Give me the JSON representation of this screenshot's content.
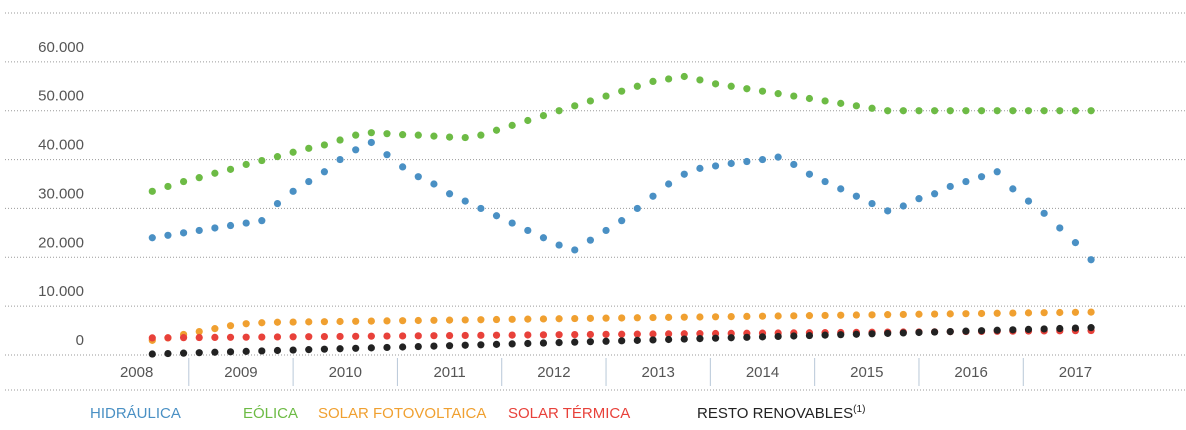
{
  "chart_data": {
    "type": "scatter",
    "x": [
      2008.15,
      2008.3,
      2008.45,
      2008.6,
      2008.75,
      2008.9,
      2009.05,
      2009.2,
      2009.35,
      2009.5,
      2009.65,
      2009.8,
      2009.95,
      2010.1,
      2010.25,
      2010.4,
      2010.55,
      2010.7,
      2010.85,
      2011,
      2011.15,
      2011.3,
      2011.45,
      2011.6,
      2011.75,
      2011.9,
      2012.05,
      2012.2,
      2012.35,
      2012.5,
      2012.65,
      2012.8,
      2012.95,
      2013.1,
      2013.25,
      2013.4,
      2013.55,
      2013.7,
      2013.85,
      2014,
      2014.15,
      2014.3,
      2014.45,
      2014.6,
      2014.75,
      2014.9,
      2015.05,
      2015.2,
      2015.35,
      2015.5,
      2015.65,
      2015.8,
      2015.95,
      2016.1,
      2016.25,
      2016.4,
      2016.55,
      2016.7,
      2016.85,
      2017,
      2017.15
    ],
    "series": [
      {
        "name": "HIDRÁULICA",
        "color": "#4a90c4",
        "values": [
          24000,
          24500,
          25000,
          25500,
          26000,
          26500,
          27000,
          27500,
          31000,
          33500,
          35500,
          37500,
          40000,
          42000,
          43500,
          41000,
          38500,
          36500,
          35000,
          33000,
          31500,
          30000,
          28500,
          27000,
          25500,
          24000,
          22500,
          21500,
          23500,
          25500,
          27500,
          30000,
          32500,
          35000,
          37000,
          38200,
          38700,
          39200,
          39600,
          40000,
          40500,
          39000,
          37000,
          35500,
          34000,
          32500,
          31000,
          29500,
          30500,
          32000,
          33000,
          34500,
          35500,
          36500,
          37500,
          34000,
          31500,
          29000,
          26000,
          23000,
          19500
        ]
      },
      {
        "name": "EÓLICA",
        "color": "#6dbb45",
        "values": [
          33500,
          34500,
          35500,
          36300,
          37200,
          38000,
          39000,
          39800,
          40600,
          41500,
          42300,
          43000,
          44000,
          45000,
          45500,
          45300,
          45100,
          45000,
          44800,
          44600,
          44500,
          45000,
          46000,
          47000,
          48000,
          49000,
          50000,
          51000,
          52000,
          53000,
          54000,
          55000,
          56000,
          56500,
          57000,
          56300,
          55500,
          55000,
          54500,
          54000,
          53500,
          53000,
          52500,
          52000,
          51500,
          51000,
          50500,
          50000,
          50000,
          50000,
          50000,
          50000,
          50000,
          50000,
          50000,
          50000,
          50000,
          50000,
          50000,
          50000,
          50000
        ]
      },
      {
        "name": "SOLAR FOTOVOLTAICA",
        "color": "#f0a030",
        "values": [
          3000,
          3500,
          4200,
          4800,
          5400,
          6000,
          6400,
          6600,
          6700,
          6740,
          6780,
          6820,
          6860,
          6900,
          6940,
          6980,
          7020,
          7060,
          7100,
          7140,
          7180,
          7220,
          7260,
          7300,
          7340,
          7380,
          7420,
          7460,
          7500,
          7540,
          7580,
          7620,
          7660,
          7700,
          7740,
          7780,
          7820,
          7860,
          7900,
          7940,
          7980,
          8020,
          8060,
          8100,
          8140,
          8180,
          8220,
          8260,
          8300,
          8340,
          8380,
          8420,
          8460,
          8500,
          8540,
          8580,
          8620,
          8660,
          8700,
          8740,
          8780
        ]
      },
      {
        "name": "SOLAR TÉRMICA",
        "color": "#e8413a",
        "values": [
          3500,
          3525,
          3550,
          3575,
          3600,
          3625,
          3650,
          3675,
          3700,
          3725,
          3750,
          3775,
          3800,
          3825,
          3850,
          3875,
          3900,
          3925,
          3950,
          3975,
          4000,
          4025,
          4050,
          4075,
          4100,
          4125,
          4150,
          4175,
          4200,
          4225,
          4250,
          4275,
          4300,
          4325,
          4350,
          4375,
          4400,
          4425,
          4450,
          4475,
          4500,
          4525,
          4550,
          4575,
          4600,
          4625,
          4650,
          4675,
          4700,
          4725,
          4750,
          4775,
          4800,
          4825,
          4850,
          4875,
          4900,
          4925,
          4950,
          4975,
          5000
        ]
      },
      {
        "name": "RESTO RENOVABLES",
        "color": "#222222",
        "values": [
          200,
          290,
          380,
          470,
          560,
          650,
          740,
          830,
          920,
          1010,
          1100,
          1190,
          1280,
          1370,
          1460,
          1550,
          1640,
          1730,
          1820,
          1910,
          2000,
          2090,
          2180,
          2270,
          2360,
          2450,
          2540,
          2630,
          2720,
          2810,
          2900,
          2990,
          3080,
          3170,
          3260,
          3350,
          3440,
          3530,
          3620,
          3710,
          3800,
          3890,
          3980,
          4070,
          4160,
          4250,
          4340,
          4430,
          4520,
          4610,
          4700,
          4790,
          4880,
          4970,
          5060,
          5150,
          5240,
          5330,
          5420,
          5510,
          5600
        ]
      }
    ],
    "legend_note": "(1)",
    "xlim": [
      2006.69,
      2018.06
    ],
    "xticks": [
      2008,
      2009,
      2010,
      2011,
      2012,
      2013,
      2014,
      2015,
      2016,
      2017
    ],
    "ylim": [
      0,
      70000
    ],
    "yticks": [
      0,
      {
        "value": 10000,
        "label": "10.000"
      },
      {
        "value": 20000,
        "label": "20.000"
      },
      {
        "value": 30000,
        "label": "30.000"
      },
      {
        "value": 40000,
        "label": "40.000"
      },
      {
        "value": 50000,
        "label": "50.000"
      },
      {
        "value": 60000,
        "label": "60.000"
      }
    ],
    "grid": true
  }
}
